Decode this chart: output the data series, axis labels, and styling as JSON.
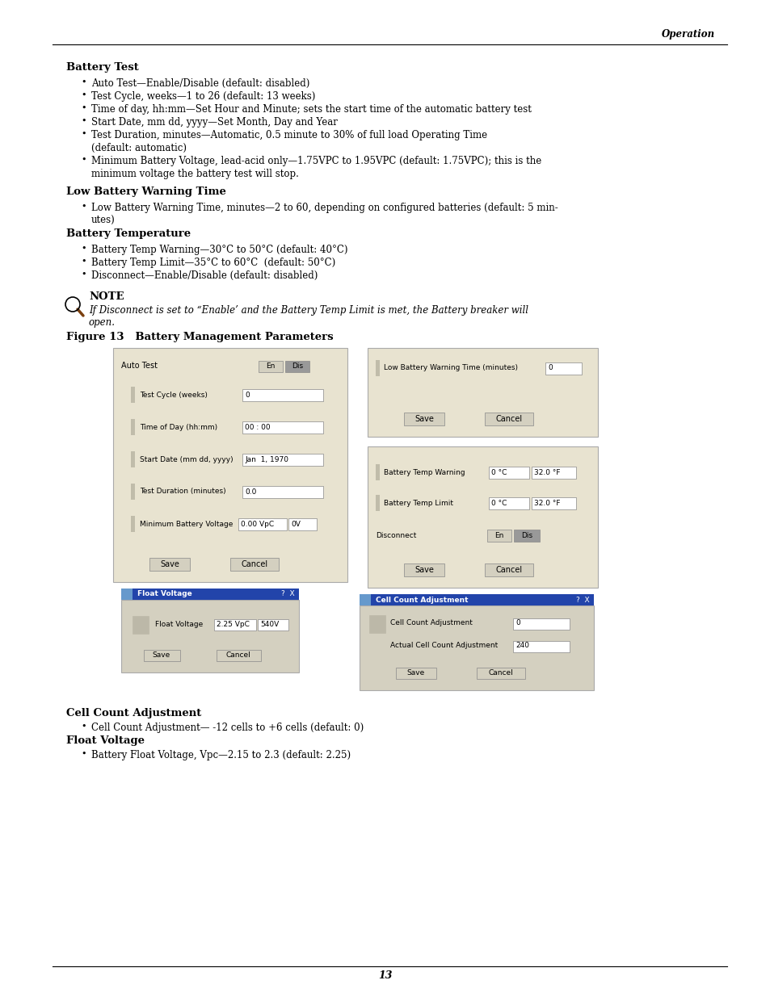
{
  "bg_color": "#ffffff",
  "panel_bg": "#e8e3d0",
  "panel_border": "#aaaaaa",
  "button_gray": "#999999",
  "button_light": "#d4d0c0",
  "header_text": "Operation",
  "figure_label": "Figure 13   Battery Management Parameters",
  "page_number": "13",
  "titlebar_color": "#4060a0",
  "titlebar_color2": "#6688cc"
}
